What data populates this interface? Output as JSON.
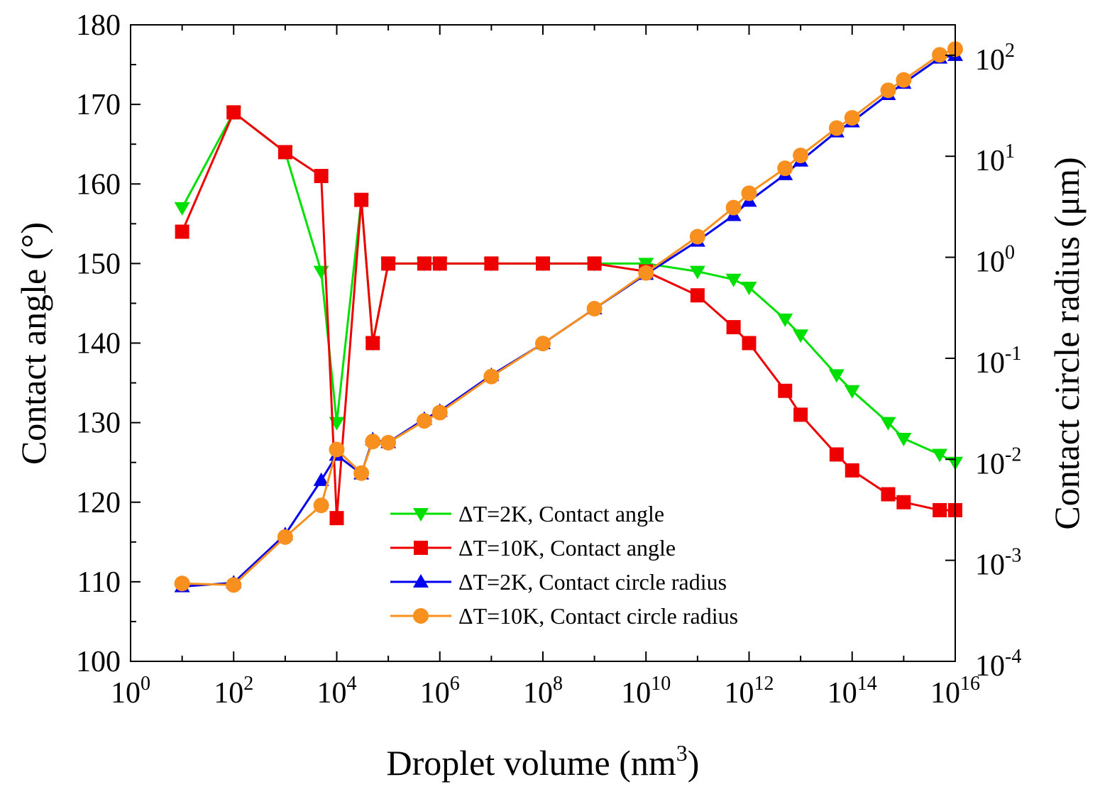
{
  "chart_data": {
    "type": "line",
    "x_scale": "log10",
    "xlabel": "Droplet volume (nm",
    "xlabel_sup": "3",
    "xlabel_end": ")",
    "ylabel_left": "Contact angle (°)",
    "ylabel_right": "Contact circle radius (μm)",
    "xlim": [
      1,
      1e+16
    ],
    "ylim_left": [
      100,
      180
    ],
    "ylim_right": [
      0.0001,
      200
    ],
    "x_ticks": [
      {
        "base": "10",
        "exp": "0",
        "value": 1
      },
      {
        "base": "10",
        "exp": "2",
        "value": 100.0
      },
      {
        "base": "10",
        "exp": "4",
        "value": 10000.0
      },
      {
        "base": "10",
        "exp": "6",
        "value": 1000000.0
      },
      {
        "base": "10",
        "exp": "8",
        "value": 100000000.0
      },
      {
        "base": "10",
        "exp": "10",
        "value": 10000000000.0
      },
      {
        "base": "10",
        "exp": "12",
        "value": 1000000000000.0
      },
      {
        "base": "10",
        "exp": "14",
        "value": 100000000000000.0
      },
      {
        "base": "10",
        "exp": "16",
        "value": 1e+16
      }
    ],
    "y_left_ticks": [
      "100",
      "110",
      "120",
      "130",
      "140",
      "150",
      "160",
      "170",
      "180"
    ],
    "y_right_ticks": [
      {
        "base": "10",
        "exp": "-4",
        "value": 0.0001
      },
      {
        "base": "10",
        "exp": "-3",
        "value": 0.001
      },
      {
        "base": "10",
        "exp": "-2",
        "value": 0.01
      },
      {
        "base": "10",
        "exp": "-1",
        "value": 0.1
      },
      {
        "base": "10",
        "exp": "0",
        "value": 1
      },
      {
        "base": "10",
        "exp": "1",
        "value": 10
      },
      {
        "base": "10",
        "exp": "2",
        "value": 100
      }
    ],
    "legend_position": "bottom-center",
    "series": [
      {
        "name": "ΔT=2K, Contact angle",
        "axis": "left",
        "color": "#00e000",
        "marker": "triangle-down",
        "x": [
          10,
          100,
          1000,
          5000,
          10000,
          30000,
          50000,
          100000,
          500000,
          1000000,
          10000000,
          100000000,
          1000000000,
          10000000000,
          100000000000,
          500000000000,
          1000000000000,
          5000000000000,
          10000000000000,
          50000000000000,
          100000000000000,
          500000000000000,
          1000000000000000,
          5000000000000000,
          10000000000000000
        ],
        "y": [
          157,
          169,
          164,
          149,
          130,
          158,
          140,
          150,
          150,
          150,
          150,
          150,
          150,
          150,
          149,
          148,
          147,
          143,
          141,
          136,
          134,
          130,
          128,
          126,
          125
        ]
      },
      {
        "name": "ΔT=10K, Contact angle",
        "axis": "left",
        "color": "#ee0000",
        "marker": "square",
        "x": [
          10,
          100,
          1000,
          5000,
          10000,
          30000,
          50000,
          100000,
          500000,
          1000000,
          10000000,
          100000000,
          1000000000,
          10000000000,
          100000000000,
          500000000000,
          1000000000000,
          5000000000000,
          10000000000000,
          50000000000000,
          100000000000000,
          500000000000000,
          1000000000000000,
          5000000000000000,
          10000000000000000
        ],
        "y": [
          154,
          169,
          164,
          161,
          118,
          158,
          140,
          150,
          150,
          150,
          150,
          150,
          150,
          149,
          146,
          142,
          140,
          134,
          131,
          126,
          124,
          121,
          120,
          119,
          119
        ]
      },
      {
        "name": "ΔT=2K, Contact circle radius",
        "axis": "right",
        "color": "#0000ee",
        "marker": "triangle-up",
        "x": [
          10,
          100,
          1000,
          5000,
          10000,
          30000,
          50000,
          100000,
          500000,
          1000000,
          10000000,
          100000000,
          1000000000,
          10000000000,
          100000000000,
          500000000000,
          1000000000000,
          5000000000000,
          10000000000000,
          50000000000000,
          100000000000000,
          500000000000000,
          1000000000000000,
          5000000000000000,
          10000000000000000
        ],
        "y": [
          0.00055,
          0.0006,
          0.0018,
          0.0062,
          0.011,
          0.0072,
          0.0157,
          0.0147,
          0.025,
          0.03,
          0.068,
          0.14,
          0.31,
          0.68,
          1.45,
          2.6,
          3.6,
          6.6,
          9.0,
          17.5,
          22.0,
          41.0,
          53.0,
          94.0,
          100.0
        ]
      },
      {
        "name": "ΔT=10K, Contact circle radius",
        "axis": "right",
        "color": "#f7901e",
        "marker": "circle",
        "x": [
          10,
          100,
          1000,
          5000,
          10000,
          30000,
          50000,
          100000,
          500000,
          1000000,
          10000000,
          100000000,
          1000000000,
          10000000000,
          100000000000,
          500000000000,
          1000000000000,
          5000000000000,
          10000000000000,
          50000000000000,
          100000000000000,
          500000000000000,
          1000000000000000,
          5000000000000000,
          10000000000000000
        ],
        "y": [
          0.00059,
          0.00057,
          0.0017,
          0.0035,
          0.0125,
          0.0073,
          0.015,
          0.0146,
          0.024,
          0.029,
          0.066,
          0.14,
          0.31,
          0.7,
          1.6,
          3.1,
          4.3,
          7.6,
          10.2,
          19.0,
          24.0,
          45.0,
          57.0,
          101.0,
          115.0
        ]
      }
    ]
  }
}
